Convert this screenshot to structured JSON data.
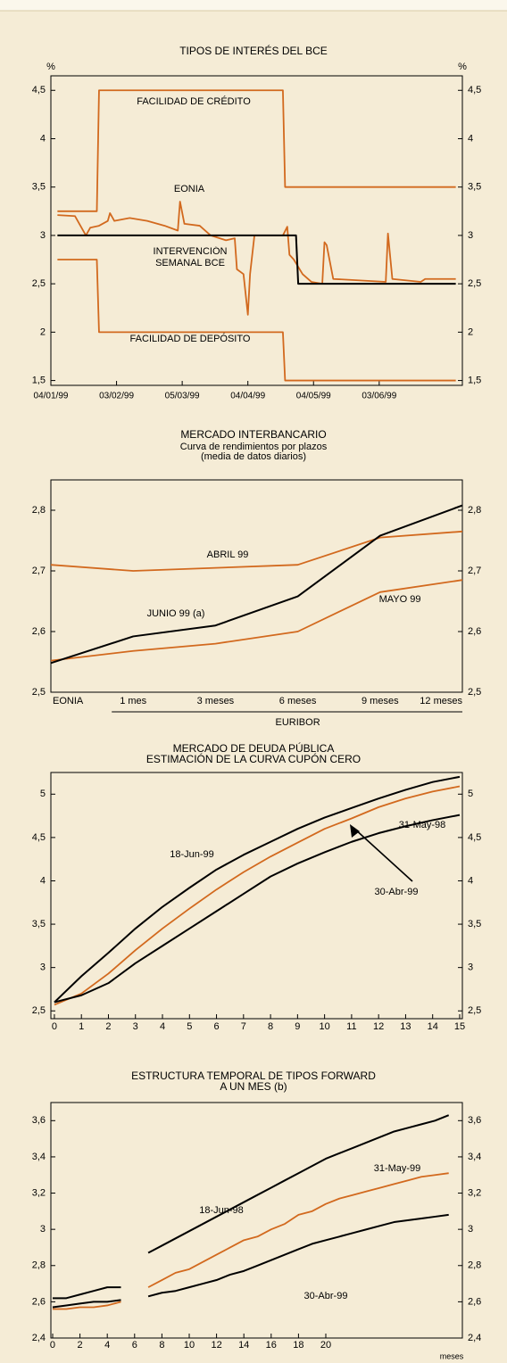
{
  "chart_data": [
    {
      "type": "line",
      "title": [
        "TIPOS DE INTERÉS DEL BCE"
      ],
      "ylabel": "%",
      "xlim": [
        "1999-01-04",
        "1999-07-11"
      ],
      "xticks": [
        {
          "value": "1999-01-04",
          "label": "04/01/99"
        },
        {
          "value": "1999-02-03",
          "label": "03/02/99"
        },
        {
          "value": "1999-03-05",
          "label": "05/03/99"
        },
        {
          "value": "1999-04-04",
          "label": "04/04/99"
        },
        {
          "value": "1999-05-04",
          "label": "04/05/99"
        },
        {
          "value": "1999-06-03",
          "label": "03/06/99"
        }
      ],
      "ylim": [
        1.45,
        4.65
      ],
      "yticks": [
        {
          "value": 1.5,
          "label": "1,5"
        },
        2,
        {
          "value": 2.5,
          "label": "2,5"
        },
        3,
        {
          "value": 3.5,
          "label": "3,5"
        },
        4,
        {
          "value": 4.5,
          "label": "4,5"
        }
      ],
      "series": [
        {
          "name": "FACILIDAD DE CRÉDITO",
          "color": "#d2691e",
          "x": [
            "1999-01-07",
            "1999-01-25",
            "1999-01-26",
            "1999-04-20",
            "1999-04-21",
            "1999-07-08"
          ],
          "values": [
            3.25,
            3.25,
            4.5,
            4.5,
            3.5,
            3.5
          ]
        },
        {
          "name": "EONIA",
          "color": "#d2691e",
          "x": [
            "1999-01-07",
            "1999-01-15",
            "1999-01-20",
            "1999-01-22",
            "1999-01-26",
            "1999-01-30",
            "1999-01-31",
            "1999-02-02",
            "1999-02-09",
            "1999-02-17",
            "1999-02-25",
            "1999-03-03",
            "1999-03-04",
            "1999-03-06",
            "1999-03-13",
            "1999-03-18",
            "1999-03-25",
            "1999-03-29",
            "1999-03-30",
            "1999-04-02",
            "1999-04-04",
            "1999-04-05",
            "1999-04-07",
            "1999-04-20",
            "1999-04-22",
            "1999-04-23",
            "1999-04-25",
            "1999-04-29",
            "1999-05-03",
            "1999-05-08",
            "1999-05-09",
            "1999-05-10",
            "1999-05-13",
            "1999-06-06",
            "1999-06-07",
            "1999-06-09",
            "1999-06-22",
            "1999-06-24",
            "1999-07-08"
          ],
          "values": [
            3.21,
            3.2,
            3.0,
            3.08,
            3.1,
            3.15,
            3.23,
            3.15,
            3.18,
            3.15,
            3.1,
            3.05,
            3.35,
            3.12,
            3.1,
            3.0,
            2.95,
            2.97,
            2.65,
            2.6,
            2.18,
            2.6,
            3.0,
            3.0,
            3.09,
            2.8,
            2.75,
            2.6,
            2.52,
            2.5,
            2.93,
            2.9,
            2.55,
            2.52,
            3.02,
            2.55,
            2.52,
            2.55,
            2.55
          ]
        },
        {
          "name": "INTERVENCIÓN SEMANAL BCE",
          "color": "#000000",
          "x": [
            "1999-01-07",
            "1999-04-26",
            "1999-04-27",
            "1999-07-08"
          ],
          "values": [
            3.0,
            3.0,
            2.5,
            2.5
          ]
        },
        {
          "name": "FACILIDAD DE DEPÓSITO",
          "color": "#d2691e",
          "x": [
            "1999-01-07",
            "1999-01-25",
            "1999-01-26",
            "1999-04-20",
            "1999-04-21",
            "1999-07-08"
          ],
          "values": [
            2.75,
            2.75,
            2.0,
            2.0,
            1.5,
            1.5
          ]
        }
      ]
    },
    {
      "type": "line",
      "title": [
        "MERCADO INTERBANCARIO"
      ],
      "subtitle": [
        "Curva de rendimientos por plazos",
        "(media de datos diarios)"
      ],
      "categories": [
        "EONIA",
        "1 mes",
        "3 meses",
        "6 meses",
        "9 meses",
        "12 meses"
      ],
      "xlabel": "EURIBOR",
      "ylim": [
        2.5,
        2.85
      ],
      "yticks": [
        {
          "value": 2.5,
          "label": "2,5"
        },
        {
          "value": 2.6,
          "label": "2,6"
        },
        {
          "value": 2.7,
          "label": "2,7"
        },
        {
          "value": 2.8,
          "label": "2,8"
        }
      ],
      "series": [
        {
          "name": "ABRIL 99",
          "color": "#d2691e",
          "values": [
            2.71,
            2.7,
            2.705,
            2.71,
            2.755,
            2.765
          ]
        },
        {
          "name": "MAYO 99",
          "color": "#d2691e",
          "values": [
            2.552,
            2.568,
            2.58,
            2.6,
            2.665,
            2.685
          ]
        },
        {
          "name": "JUNIO 99 (a)",
          "color": "#000000",
          "values": [
            2.548,
            2.592,
            2.61,
            2.658,
            2.758,
            2.808
          ]
        }
      ]
    },
    {
      "type": "line",
      "title": [
        "MERCADO DE DEUDA PÚBLICA",
        "ESTIMACIÓN DE LA CURVA CUPÓN CERO"
      ],
      "xlim": [
        -0.13,
        15.1
      ],
      "xticks": [
        0,
        1,
        2,
        3,
        4,
        5,
        6,
        7,
        8,
        9,
        10,
        11,
        12,
        13,
        14,
        15
      ],
      "ylim": [
        2.41,
        5.25
      ],
      "yticks": [
        {
          "value": 2.5,
          "label": "2,5"
        },
        3,
        {
          "value": 3.5,
          "label": "3,5"
        },
        4,
        {
          "value": 4.5,
          "label": "4,5"
        },
        5
      ],
      "series": [
        {
          "name": "18-Jun-99",
          "color": "#000000",
          "x": [
            0,
            1,
            2,
            3,
            4,
            5,
            6,
            7,
            8,
            9,
            10,
            11,
            12,
            13,
            14,
            15
          ],
          "values": [
            2.6,
            2.9,
            3.17,
            3.45,
            3.7,
            3.92,
            4.13,
            4.3,
            4.45,
            4.6,
            4.73,
            4.84,
            4.95,
            5.05,
            5.14,
            5.2
          ]
        },
        {
          "name": "31-May-98",
          "color": "#d2691e",
          "x": [
            0,
            1,
            2,
            3,
            4,
            5,
            6,
            7,
            8,
            9,
            10,
            11,
            12,
            13,
            14,
            15
          ],
          "values": [
            2.57,
            2.7,
            2.93,
            3.2,
            3.45,
            3.68,
            3.9,
            4.1,
            4.28,
            4.44,
            4.6,
            4.72,
            4.85,
            4.95,
            5.03,
            5.09
          ]
        },
        {
          "name": "30-Abr-99",
          "color": "#000000",
          "x": [
            0,
            1,
            2,
            3,
            4,
            5,
            6,
            7,
            8,
            9,
            10,
            11,
            12,
            13,
            14,
            15
          ],
          "values": [
            2.6,
            2.68,
            2.82,
            3.05,
            3.25,
            3.45,
            3.65,
            3.85,
            4.05,
            4.2,
            4.33,
            4.45,
            4.55,
            4.63,
            4.7,
            4.76
          ]
        }
      ]
    },
    {
      "type": "line",
      "title": [
        "ESTRUCTURA TEMPORAL DE TIPOS FORWARD",
        "A UN MES (b)"
      ],
      "xlabel": "meses",
      "xlim": [
        -0.13,
        30
      ],
      "xticks": [
        0,
        2,
        4,
        6,
        8,
        10,
        12,
        14,
        16,
        18,
        20
      ],
      "ylim": [
        2.4,
        3.7
      ],
      "yticks": [
        {
          "value": 2.4,
          "label": "2,4"
        },
        {
          "value": 2.6,
          "label": "2,6"
        },
        {
          "value": 2.8,
          "label": "2,8"
        },
        3,
        {
          "value": 3.2,
          "label": "3,2"
        },
        {
          "value": 3.4,
          "label": "3,4"
        },
        {
          "value": 3.6,
          "label": "3,6"
        }
      ],
      "series": [
        {
          "name": "18-Jun-98",
          "color": "#000000",
          "x": [
            0,
            1,
            2,
            3,
            4,
            5,
            6,
            7,
            8,
            9,
            10,
            11,
            12,
            13,
            14,
            15,
            16,
            17,
            18,
            19,
            20,
            21,
            22,
            23,
            24,
            25,
            26,
            27,
            28,
            29
          ],
          "values": [
            2.62,
            2.62,
            2.64,
            2.66,
            2.68,
            2.68,
            null,
            2.87,
            2.91,
            2.95,
            2.99,
            3.03,
            3.07,
            3.11,
            3.15,
            3.19,
            3.23,
            3.27,
            3.31,
            3.35,
            3.39,
            3.42,
            3.45,
            3.48,
            3.51,
            3.54,
            3.56,
            3.58,
            3.6,
            3.63
          ]
        },
        {
          "name": "31-May-99",
          "color": "#d2691e",
          "x": [
            0,
            1,
            2,
            3,
            4,
            5,
            6,
            7,
            8,
            9,
            10,
            11,
            12,
            13,
            14,
            15,
            16,
            17,
            18,
            19,
            20,
            21,
            22,
            23,
            24,
            25,
            26,
            27,
            28,
            29
          ],
          "values": [
            2.56,
            2.56,
            2.57,
            2.57,
            2.58,
            2.6,
            null,
            2.68,
            2.72,
            2.76,
            2.78,
            2.82,
            2.86,
            2.9,
            2.94,
            2.96,
            3.0,
            3.03,
            3.08,
            3.1,
            3.14,
            3.17,
            3.19,
            3.21,
            3.23,
            3.25,
            3.27,
            3.29,
            3.3,
            3.31
          ]
        },
        {
          "name": "30-Abr-99",
          "color": "#000000",
          "x": [
            0,
            1,
            2,
            3,
            4,
            5,
            6,
            7,
            8,
            9,
            10,
            11,
            12,
            13,
            14,
            15,
            16,
            17,
            18,
            19,
            20,
            21,
            22,
            23,
            24,
            25,
            26,
            27,
            28,
            29
          ],
          "values": [
            2.57,
            2.58,
            2.59,
            2.6,
            2.6,
            2.61,
            null,
            2.63,
            2.65,
            2.66,
            2.68,
            2.7,
            2.72,
            2.75,
            2.77,
            2.8,
            2.83,
            2.86,
            2.89,
            2.92,
            2.94,
            2.96,
            2.98,
            3.0,
            3.02,
            3.04,
            3.05,
            3.06,
            3.07,
            3.08
          ]
        }
      ]
    }
  ]
}
